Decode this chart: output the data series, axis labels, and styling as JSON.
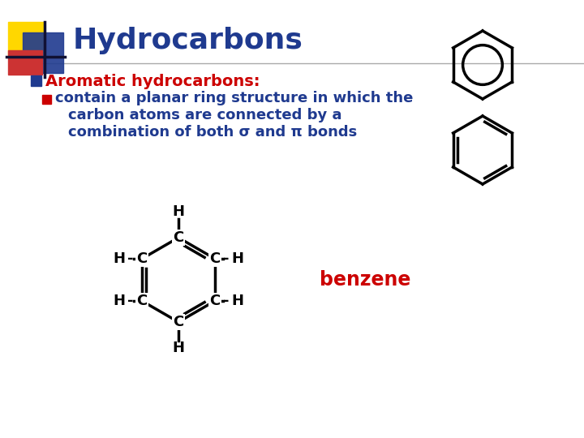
{
  "title": "Hydrocarbons",
  "title_color": "#1F3A8F",
  "title_fontsize": 26,
  "bg_color": "#FFFFFF",
  "bullet1_text": "Aromatic hydrocarbons:",
  "bullet1_color": "#CC0000",
  "bullet1_bullet_color": "#1F3A8F",
  "bullet2_line1": "contain a planar ring structure in which the",
  "bullet2_line2": "carbon atoms are connected by a",
  "bullet2_line3": "combination of both σ and π bonds",
  "bullet2_color": "#1F3A8F",
  "bullet2_bullet_color": "#CC0000",
  "benzene_label": "benzene",
  "benzene_label_color": "#CC0000",
  "black": "#000000",
  "gray_line": "#AAAAAA",
  "sq_yellow": "#FFD700",
  "sq_blue": "#1F3A8F",
  "sq_red": "#CC3333"
}
